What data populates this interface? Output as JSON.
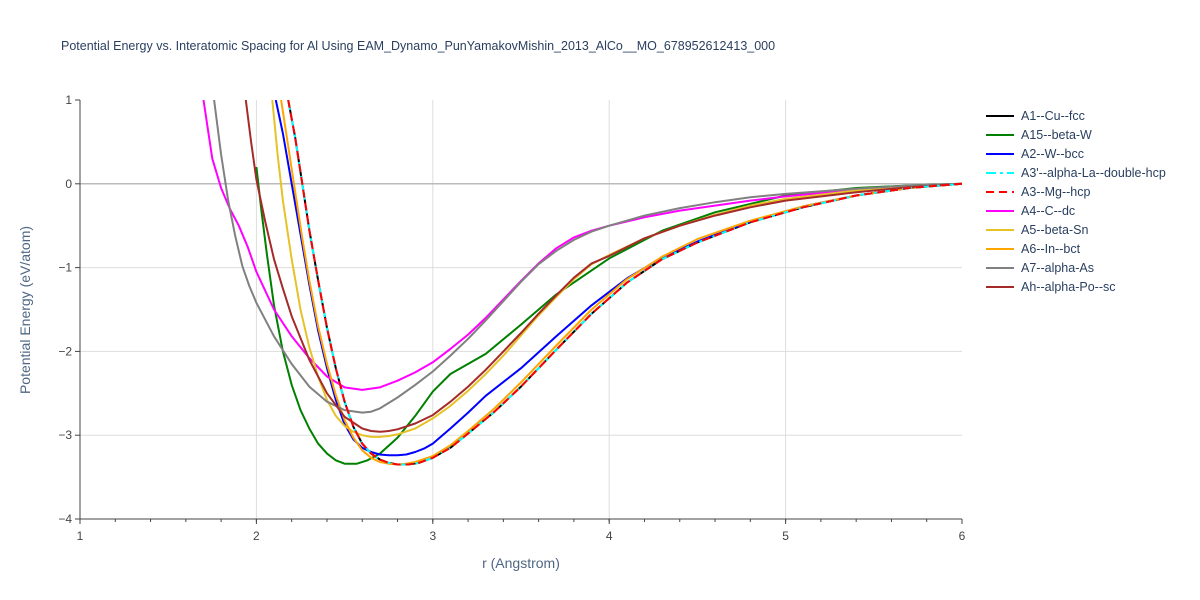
{
  "chart_data": {
    "type": "line",
    "title": "Potential Energy vs. Interatomic Spacing for Al Using EAM_Dynamo_PunYamakovMishin_2013_AlCo__MO_678952612413_000",
    "xlabel": "r (Angstrom)",
    "ylabel": "Potential Energy (eV/atom)",
    "xlim": [
      1,
      6
    ],
    "ylim": [
      -4,
      1
    ],
    "xticks": [
      "1",
      "2",
      "3",
      "4",
      "5",
      "6"
    ],
    "yticks": [
      "1",
      "0",
      "−1",
      "−2",
      "−3",
      "−4"
    ],
    "grid": true,
    "legend_position": "right",
    "series": [
      {
        "name": "A1--Cu--fcc",
        "color": "#000000",
        "dash": "solid",
        "x": [
          2.18,
          2.22,
          2.26,
          2.3,
          2.35,
          2.4,
          2.45,
          2.5,
          2.55,
          2.6,
          2.65,
          2.7,
          2.75,
          2.8,
          2.86,
          2.92,
          3.0,
          3.1,
          3.2,
          3.35,
          3.5,
          3.7,
          3.9,
          4.1,
          4.3,
          4.5,
          4.8,
          5.1,
          5.4,
          5.7,
          6.0
        ],
        "y": [
          1.0,
          0.55,
          0.0,
          -0.55,
          -1.15,
          -1.72,
          -2.2,
          -2.6,
          -2.9,
          -3.1,
          -3.22,
          -3.29,
          -3.33,
          -3.35,
          -3.35,
          -3.33,
          -3.27,
          -3.15,
          -2.98,
          -2.72,
          -2.42,
          -1.98,
          -1.55,
          -1.18,
          -0.9,
          -0.7,
          -0.46,
          -0.28,
          -0.14,
          -0.05,
          0.0
        ]
      },
      {
        "name": "A15--beta-W",
        "color": "#008000",
        "dash": "solid",
        "x": [
          2.0,
          2.03,
          2.06,
          2.1,
          2.15,
          2.2,
          2.25,
          2.3,
          2.35,
          2.4,
          2.45,
          2.5,
          2.57,
          2.63,
          2.7,
          2.8,
          2.9,
          3.0,
          3.1,
          3.3,
          3.5,
          3.7,
          4.0,
          4.3,
          4.6,
          5.0,
          5.4,
          5.7,
          6.0
        ],
        "y": [
          0.2,
          -0.35,
          -0.85,
          -1.45,
          -2.0,
          -2.4,
          -2.7,
          -2.92,
          -3.1,
          -3.22,
          -3.3,
          -3.34,
          -3.34,
          -3.3,
          -3.22,
          -3.03,
          -2.77,
          -2.48,
          -2.27,
          -2.03,
          -1.68,
          -1.32,
          -0.89,
          -0.56,
          -0.34,
          -0.14,
          -0.05,
          -0.02,
          0.0
        ]
      },
      {
        "name": "A2--W--bcc",
        "color": "#0000ff",
        "dash": "solid",
        "x": [
          2.11,
          2.15,
          2.2,
          2.25,
          2.3,
          2.35,
          2.4,
          2.45,
          2.5,
          2.55,
          2.6,
          2.65,
          2.7,
          2.75,
          2.8,
          2.85,
          2.9,
          2.95,
          3.0,
          3.1,
          3.2,
          3.3,
          3.5,
          3.7,
          3.9,
          4.1,
          4.3,
          4.5,
          4.8,
          5.1,
          5.4,
          5.7,
          6.0
        ],
        "y": [
          1.0,
          0.6,
          0.0,
          -0.6,
          -1.2,
          -1.75,
          -2.2,
          -2.58,
          -2.87,
          -3.05,
          -3.15,
          -3.2,
          -3.23,
          -3.24,
          -3.24,
          -3.23,
          -3.2,
          -3.16,
          -3.1,
          -2.92,
          -2.73,
          -2.53,
          -2.2,
          -1.82,
          -1.45,
          -1.13,
          -0.88,
          -0.69,
          -0.45,
          -0.27,
          -0.14,
          -0.05,
          0.0
        ]
      },
      {
        "name": "A3'--alpha-La--double-hcp",
        "color": "#00ffff",
        "dash": "dashdot",
        "x": [
          2.18,
          2.22,
          2.26,
          2.3,
          2.35,
          2.4,
          2.45,
          2.5,
          2.55,
          2.6,
          2.65,
          2.7,
          2.75,
          2.8,
          2.86,
          2.92,
          3.0,
          3.1,
          3.2,
          3.35,
          3.5,
          3.7,
          3.9,
          4.1,
          4.3,
          4.5,
          4.8,
          5.1,
          5.4,
          5.7,
          6.0
        ],
        "y": [
          1.0,
          0.55,
          0.0,
          -0.55,
          -1.15,
          -1.72,
          -2.2,
          -2.6,
          -2.9,
          -3.1,
          -3.22,
          -3.29,
          -3.33,
          -3.35,
          -3.35,
          -3.33,
          -3.27,
          -3.15,
          -2.98,
          -2.72,
          -2.42,
          -1.98,
          -1.55,
          -1.18,
          -0.9,
          -0.7,
          -0.46,
          -0.28,
          -0.14,
          -0.05,
          0.0
        ]
      },
      {
        "name": "A3--Mg--hcp",
        "color": "#ff0000",
        "dash": "dash",
        "x": [
          2.18,
          2.22,
          2.26,
          2.3,
          2.35,
          2.4,
          2.45,
          2.5,
          2.55,
          2.6,
          2.65,
          2.7,
          2.75,
          2.8,
          2.86,
          2.92,
          3.0,
          3.1,
          3.2,
          3.35,
          3.5,
          3.7,
          3.9,
          4.1,
          4.3,
          4.5,
          4.8,
          5.1,
          5.4,
          5.7,
          6.0
        ],
        "y": [
          1.0,
          0.55,
          0.0,
          -0.55,
          -1.15,
          -1.72,
          -2.2,
          -2.6,
          -2.9,
          -3.1,
          -3.22,
          -3.29,
          -3.33,
          -3.35,
          -3.35,
          -3.33,
          -3.27,
          -3.15,
          -2.98,
          -2.72,
          -2.42,
          -1.98,
          -1.55,
          -1.18,
          -0.9,
          -0.7,
          -0.46,
          -0.28,
          -0.14,
          -0.05,
          0.0
        ]
      },
      {
        "name": "A4--C--dc",
        "color": "#ff00ff",
        "dash": "solid",
        "x": [
          1.7,
          1.75,
          1.8,
          1.85,
          1.9,
          1.95,
          2.0,
          2.1,
          2.2,
          2.3,
          2.4,
          2.5,
          2.6,
          2.7,
          2.8,
          2.9,
          3.0,
          3.1,
          3.2,
          3.3,
          3.4,
          3.5,
          3.6,
          3.7,
          3.8,
          3.9,
          4.0,
          4.2,
          4.4,
          4.6,
          4.8,
          5.0,
          5.4,
          5.7,
          6.0
        ],
        "y": [
          1.0,
          0.3,
          -0.05,
          -0.3,
          -0.5,
          -0.75,
          -1.05,
          -1.5,
          -1.82,
          -2.08,
          -2.3,
          -2.43,
          -2.46,
          -2.43,
          -2.35,
          -2.25,
          -2.13,
          -1.97,
          -1.8,
          -1.6,
          -1.38,
          -1.16,
          -0.95,
          -0.77,
          -0.64,
          -0.56,
          -0.5,
          -0.4,
          -0.32,
          -0.26,
          -0.2,
          -0.15,
          -0.07,
          -0.03,
          0.0
        ]
      },
      {
        "name": "A5--beta-Sn",
        "color": "#e6c229",
        "dash": "solid",
        "x": [
          2.09,
          2.12,
          2.15,
          2.2,
          2.25,
          2.3,
          2.35,
          2.4,
          2.45,
          2.5,
          2.55,
          2.6,
          2.65,
          2.7,
          2.75,
          2.8,
          2.9,
          3.0,
          3.1,
          3.2,
          3.3,
          3.4,
          3.5,
          3.6,
          3.7,
          3.8,
          3.9,
          4.0,
          4.2,
          4.4,
          4.6,
          4.8,
          5.0,
          5.4,
          5.7,
          6.0
        ],
        "y": [
          1.0,
          0.35,
          -0.2,
          -0.9,
          -1.5,
          -1.95,
          -2.3,
          -2.58,
          -2.77,
          -2.89,
          -2.96,
          -3.0,
          -3.02,
          -3.02,
          -3.01,
          -2.99,
          -2.92,
          -2.8,
          -2.65,
          -2.47,
          -2.27,
          -2.05,
          -1.81,
          -1.57,
          -1.35,
          -1.14,
          -0.96,
          -0.85,
          -0.65,
          -0.5,
          -0.37,
          -0.26,
          -0.18,
          -0.08,
          -0.03,
          0.0
        ]
      },
      {
        "name": "A6--In--bct",
        "color": "#ffa500",
        "dash": "solid",
        "x": [
          2.14,
          2.18,
          2.22,
          2.26,
          2.3,
          2.35,
          2.4,
          2.45,
          2.5,
          2.55,
          2.6,
          2.65,
          2.7,
          2.75,
          2.8,
          2.85,
          2.9,
          3.0,
          3.1,
          3.2,
          3.35,
          3.5,
          3.7,
          3.9,
          4.1,
          4.3,
          4.5,
          4.8,
          5.1,
          5.4,
          5.7,
          6.0
        ],
        "y": [
          1.0,
          0.45,
          -0.1,
          -0.65,
          -1.15,
          -1.7,
          -2.15,
          -2.52,
          -2.82,
          -3.03,
          -3.18,
          -3.27,
          -3.32,
          -3.34,
          -3.35,
          -3.34,
          -3.32,
          -3.25,
          -3.12,
          -2.95,
          -2.68,
          -2.37,
          -1.93,
          -1.5,
          -1.14,
          -0.87,
          -0.66,
          -0.44,
          -0.27,
          -0.14,
          -0.05,
          0.0
        ]
      },
      {
        "name": "A7--alpha-As",
        "color": "#808080",
        "dash": "solid",
        "x": [
          1.76,
          1.8,
          1.84,
          1.88,
          1.92,
          1.96,
          2.0,
          2.1,
          2.2,
          2.3,
          2.4,
          2.5,
          2.6,
          2.65,
          2.7,
          2.8,
          2.9,
          3.0,
          3.1,
          3.2,
          3.3,
          3.4,
          3.5,
          3.6,
          3.7,
          3.8,
          3.9,
          4.0,
          4.2,
          4.4,
          4.6,
          4.8,
          5.0,
          5.4,
          5.7,
          6.0
        ],
        "y": [
          1.0,
          0.35,
          -0.2,
          -0.62,
          -0.98,
          -1.22,
          -1.42,
          -1.82,
          -2.15,
          -2.42,
          -2.6,
          -2.7,
          -2.73,
          -2.72,
          -2.68,
          -2.55,
          -2.4,
          -2.24,
          -2.05,
          -1.85,
          -1.63,
          -1.4,
          -1.17,
          -0.96,
          -0.8,
          -0.67,
          -0.57,
          -0.5,
          -0.38,
          -0.29,
          -0.22,
          -0.16,
          -0.12,
          -0.06,
          -0.02,
          0.0
        ]
      },
      {
        "name": "Ah--alpha-Po--sc",
        "color": "#a52a2a",
        "dash": "solid",
        "x": [
          1.94,
          1.97,
          2.0,
          2.05,
          2.1,
          2.15,
          2.2,
          2.3,
          2.4,
          2.5,
          2.6,
          2.65,
          2.7,
          2.75,
          2.8,
          2.9,
          3.0,
          3.1,
          3.2,
          3.3,
          3.4,
          3.5,
          3.6,
          3.7,
          3.8,
          3.9,
          4.0,
          4.2,
          4.4,
          4.6,
          4.8,
          5.0,
          5.4,
          5.7,
          6.0
        ],
        "y": [
          1.0,
          0.5,
          0.05,
          -0.45,
          -0.9,
          -1.25,
          -1.58,
          -2.1,
          -2.5,
          -2.78,
          -2.92,
          -2.95,
          -2.96,
          -2.95,
          -2.93,
          -2.86,
          -2.76,
          -2.6,
          -2.42,
          -2.22,
          -2.0,
          -1.78,
          -1.55,
          -1.33,
          -1.12,
          -0.95,
          -0.86,
          -0.65,
          -0.5,
          -0.38,
          -0.28,
          -0.2,
          -0.1,
          -0.04,
          0.0
        ]
      }
    ]
  }
}
